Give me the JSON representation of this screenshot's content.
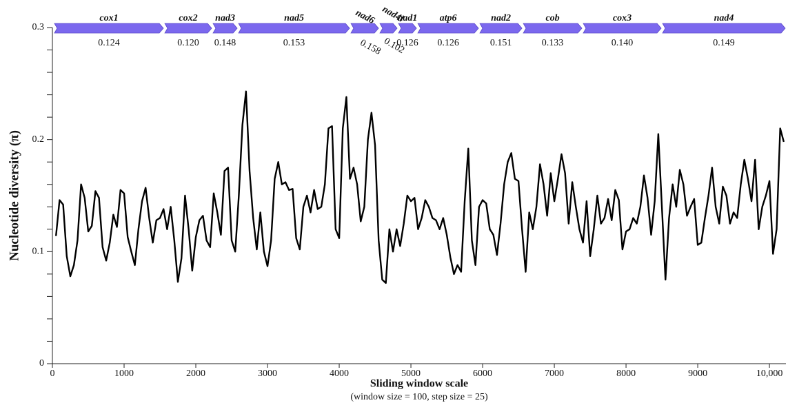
{
  "chart_data": {
    "type": "line",
    "x_label": "Sliding window scale",
    "x_sublabel": "(window size = 100, step size = 25)",
    "y_label": "Nucleotide diversity (π)",
    "color": "#000000",
    "xlim": [
      0,
      10230
    ],
    "ylim": [
      0,
      0.3
    ],
    "xticks": [
      0,
      1000,
      2000,
      3000,
      4000,
      5000,
      6000,
      7000,
      8000,
      9000,
      {
        "value": 10000,
        "label": "10,000"
      }
    ],
    "yticks": [
      0,
      0.1,
      0.2,
      0.3
    ],
    "yminor_ticks": [
      0.02,
      0.04,
      0.06,
      0.08,
      0.12,
      0.14,
      0.16,
      0.18,
      0.22,
      0.24,
      0.26,
      0.28
    ],
    "x": [
      50,
      100,
      150,
      200,
      250,
      300,
      350,
      400,
      450,
      500,
      550,
      600,
      650,
      700,
      750,
      800,
      850,
      900,
      950,
      1000,
      1050,
      1100,
      1150,
      1200,
      1250,
      1300,
      1350,
      1400,
      1450,
      1500,
      1550,
      1600,
      1650,
      1700,
      1750,
      1800,
      1850,
      1900,
      1950,
      2000,
      2050,
      2100,
      2150,
      2200,
      2250,
      2300,
      2350,
      2400,
      2450,
      2500,
      2550,
      2600,
      2650,
      2700,
      2750,
      2800,
      2850,
      2900,
      2950,
      3000,
      3050,
      3100,
      3150,
      3200,
      3250,
      3300,
      3350,
      3400,
      3450,
      3500,
      3550,
      3600,
      3650,
      3700,
      3750,
      3800,
      3850,
      3900,
      3950,
      4000,
      4050,
      4100,
      4150,
      4200,
      4250,
      4300,
      4350,
      4400,
      4450,
      4500,
      4550,
      4600,
      4650,
      4700,
      4750,
      4800,
      4850,
      4900,
      4950,
      5000,
      5050,
      5100,
      5150,
      5200,
      5250,
      5300,
      5350,
      5400,
      5450,
      5500,
      5550,
      5600,
      5650,
      5700,
      5750,
      5800,
      5850,
      5900,
      5950,
      6000,
      6050,
      6100,
      6150,
      6200,
      6250,
      6300,
      6350,
      6400,
      6450,
      6500,
      6550,
      6600,
      6650,
      6700,
      6750,
      6800,
      6850,
      6900,
      6950,
      7000,
      7050,
      7100,
      7150,
      7200,
      7250,
      7300,
      7350,
      7400,
      7450,
      7500,
      7550,
      7600,
      7650,
      7700,
      7750,
      7800,
      7850,
      7900,
      7950,
      8000,
      8050,
      8100,
      8150,
      8200,
      8250,
      8300,
      8350,
      8400,
      8450,
      8500,
      8550,
      8600,
      8650,
      8700,
      8750,
      8800,
      8850,
      8900,
      8950,
      9000,
      9050,
      9100,
      9150,
      9200,
      9250,
      9300,
      9350,
      9400,
      9450,
      9500,
      9550,
      9600,
      9650,
      9700,
      9750,
      9800,
      9850,
      9900,
      9950,
      10000,
      10050,
      10100,
      10150,
      10200
    ],
    "values": [
      0.114,
      0.146,
      0.142,
      0.096,
      0.078,
      0.088,
      0.11,
      0.16,
      0.148,
      0.118,
      0.123,
      0.154,
      0.148,
      0.104,
      0.092,
      0.108,
      0.133,
      0.122,
      0.155,
      0.152,
      0.113,
      0.1,
      0.088,
      0.12,
      0.145,
      0.157,
      0.13,
      0.108,
      0.128,
      0.13,
      0.138,
      0.12,
      0.14,
      0.11,
      0.073,
      0.094,
      0.15,
      0.12,
      0.083,
      0.113,
      0.128,
      0.132,
      0.11,
      0.104,
      0.152,
      0.135,
      0.115,
      0.172,
      0.175,
      0.11,
      0.1,
      0.15,
      0.213,
      0.243,
      0.172,
      0.13,
      0.102,
      0.135,
      0.1,
      0.087,
      0.11,
      0.165,
      0.18,
      0.16,
      0.162,
      0.155,
      0.156,
      0.112,
      0.102,
      0.14,
      0.15,
      0.135,
      0.155,
      0.138,
      0.14,
      0.16,
      0.21,
      0.212,
      0.12,
      0.112,
      0.21,
      0.238,
      0.165,
      0.175,
      0.16,
      0.127,
      0.14,
      0.2,
      0.224,
      0.195,
      0.11,
      0.075,
      0.072,
      0.12,
      0.1,
      0.12,
      0.105,
      0.125,
      0.15,
      0.145,
      0.148,
      0.12,
      0.13,
      0.146,
      0.14,
      0.13,
      0.128,
      0.12,
      0.13,
      0.115,
      0.095,
      0.08,
      0.088,
      0.082,
      0.145,
      0.192,
      0.11,
      0.088,
      0.14,
      0.146,
      0.143,
      0.12,
      0.115,
      0.097,
      0.125,
      0.16,
      0.18,
      0.188,
      0.165,
      0.163,
      0.12,
      0.082,
      0.135,
      0.12,
      0.14,
      0.178,
      0.16,
      0.132,
      0.17,
      0.145,
      0.165,
      0.187,
      0.17,
      0.125,
      0.162,
      0.14,
      0.12,
      0.108,
      0.145,
      0.096,
      0.12,
      0.15,
      0.125,
      0.13,
      0.147,
      0.128,
      0.155,
      0.146,
      0.102,
      0.118,
      0.12,
      0.13,
      0.125,
      0.14,
      0.168,
      0.148,
      0.115,
      0.145,
      0.205,
      0.14,
      0.075,
      0.13,
      0.16,
      0.14,
      0.173,
      0.16,
      0.132,
      0.14,
      0.147,
      0.106,
      0.108,
      0.13,
      0.15,
      0.175,
      0.14,
      0.125,
      0.158,
      0.15,
      0.125,
      0.135,
      0.13,
      0.16,
      0.182,
      0.165,
      0.145,
      0.182,
      0.12,
      0.14,
      0.15,
      0.163,
      0.098,
      0.12,
      0.21,
      0.198
    ],
    "genes": {
      "color": "#7b68ee",
      "names": [
        "cox1",
        "cox2",
        "nad3",
        "nad5",
        "nad6",
        "nad4l",
        "nad1",
        "atp6",
        "nad2",
        "cob",
        "cox3",
        "nad4"
      ],
      "starts": [
        19,
        1558,
        2231,
        2587,
        4154,
        4558,
        4817,
        5087,
        5952,
        6558,
        7394,
        8500
      ],
      "ends": [
        1558,
        2231,
        2587,
        4154,
        4558,
        4817,
        5087,
        5952,
        6558,
        7394,
        8500,
        10230
      ],
      "values": [
        0.124,
        0.12,
        0.148,
        0.153,
        0.158,
        0.102,
        0.126,
        0.126,
        0.151,
        0.133,
        0.14,
        0.149
      ],
      "value_labels": [
        "0.124",
        "0.120",
        "0.148",
        "0.153",
        "0.158",
        "0.102",
        "0.126",
        "0.126",
        "0.151",
        "0.133",
        "0.140",
        "0.149"
      ]
    }
  }
}
